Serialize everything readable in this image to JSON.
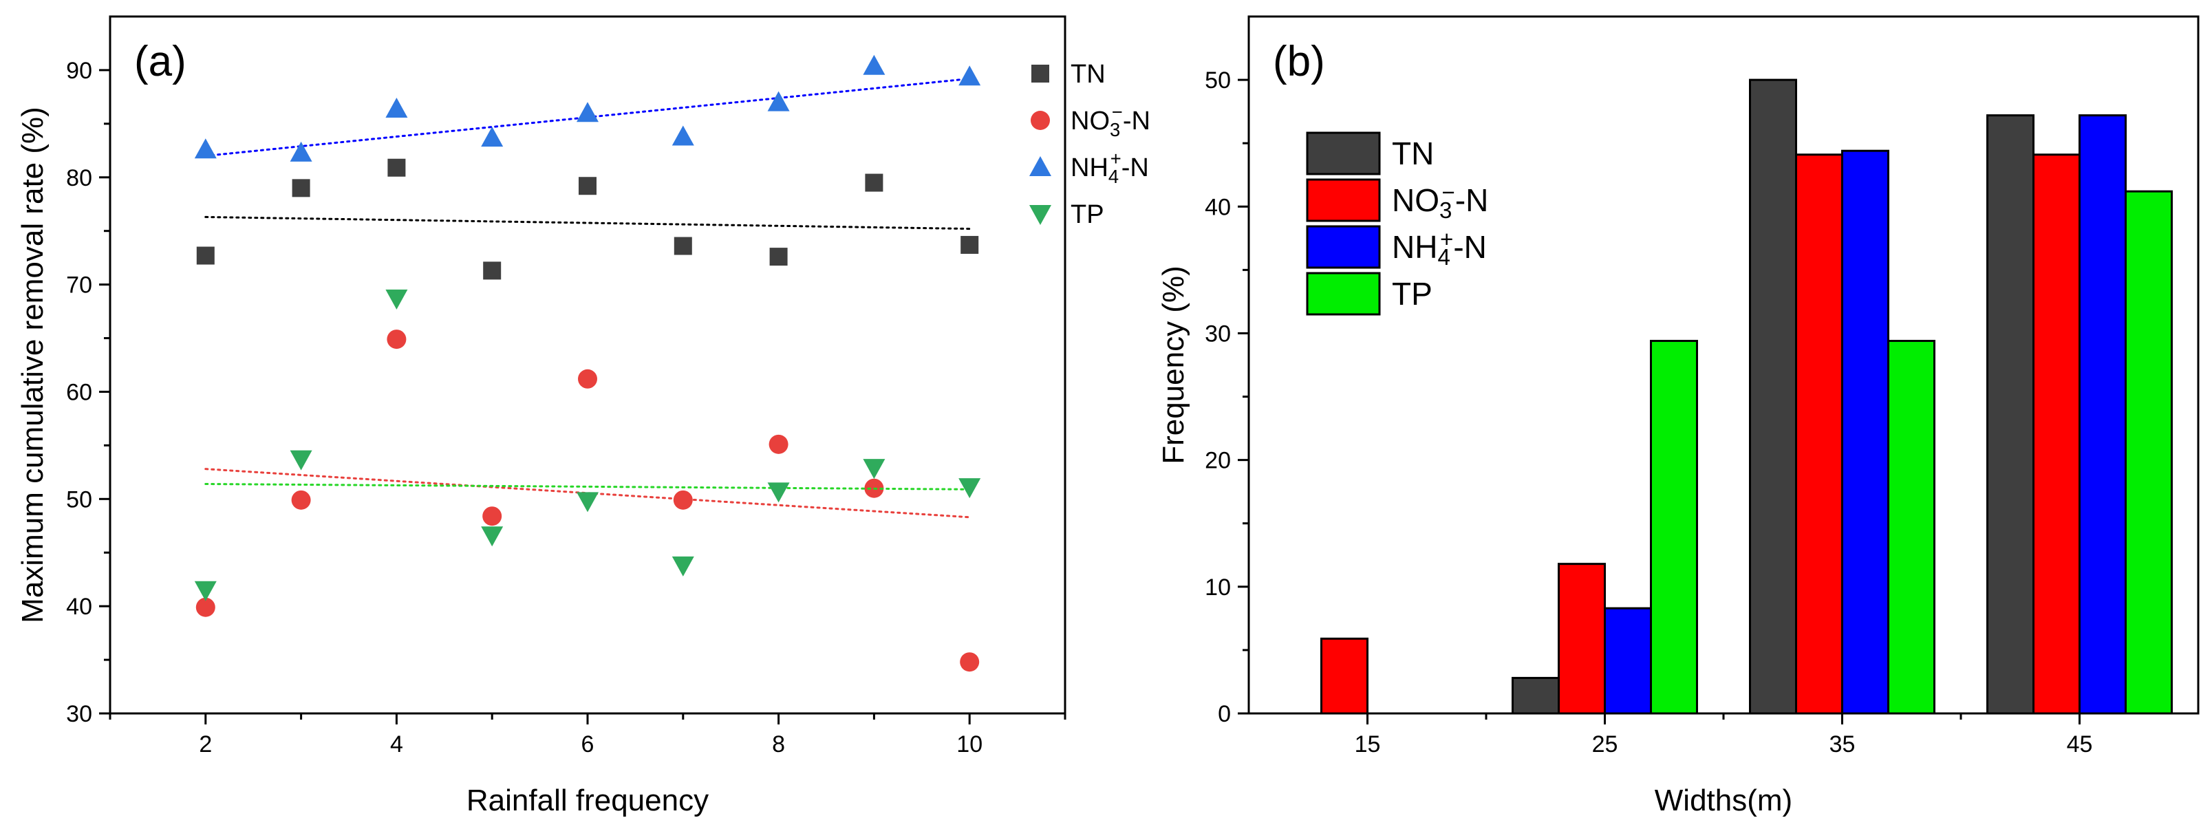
{
  "chart_data": [
    {
      "type": "scatter",
      "panel_label": "(a)",
      "xlabel": "Rainfall frequency",
      "ylabel": "Maximum cumulative removal rate (%)",
      "xlim": [
        1,
        11
      ],
      "ylim": [
        30,
        95
      ],
      "xticks": [
        2,
        4,
        6,
        8,
        10
      ],
      "yticks": [
        30,
        40,
        50,
        60,
        70,
        80,
        90
      ],
      "legend_position": "top-right",
      "x": [
        2,
        3,
        4,
        5,
        6,
        7,
        8,
        9,
        10
      ],
      "series": [
        {
          "name": "TN",
          "label_main": "TN",
          "marker": "square",
          "color": "#3f3f3f",
          "values": [
            72.7,
            79.0,
            80.9,
            71.3,
            79.2,
            73.6,
            72.6,
            79.5,
            73.7
          ],
          "trend": {
            "start": [
              2,
              76.3
            ],
            "end": [
              10,
              75.2
            ],
            "color": "#000000"
          }
        },
        {
          "name": "NO3−-N",
          "label_main": "NO",
          "label_sub": "3",
          "label_sup": "−",
          "label_tail": "-N",
          "marker": "circle",
          "color": "#e8403c",
          "values": [
            39.9,
            49.9,
            64.9,
            48.4,
            61.2,
            49.9,
            55.1,
            51.0,
            34.8
          ],
          "trend": {
            "start": [
              2,
              52.8
            ],
            "end": [
              10,
              48.3
            ],
            "color": "#e8403c"
          }
        },
        {
          "name": "NH4+-N",
          "label_main": "NH",
          "label_sub": "4",
          "label_sup": "+",
          "label_tail": "-N",
          "marker": "triangle-up",
          "color": "#2f78e0",
          "values": [
            82.6,
            82.3,
            86.4,
            83.7,
            86.0,
            83.8,
            87.0,
            90.4,
            89.4
          ],
          "trend": {
            "start": [
              2,
              82.0
            ],
            "end": [
              10,
              89.2
            ],
            "color": "#0000ff"
          }
        },
        {
          "name": "TP",
          "label_main": "TP",
          "marker": "triangle-down",
          "color": "#2fab5c",
          "values": [
            41.5,
            53.7,
            68.7,
            46.6,
            49.8,
            43.8,
            50.7,
            52.9,
            51.1
          ],
          "trend": {
            "start": [
              2,
              51.4
            ],
            "end": [
              10,
              50.9
            ],
            "color": "#27d627"
          }
        }
      ]
    },
    {
      "type": "bar",
      "panel_label": "(b)",
      "xlabel": "Widths(m)",
      "ylabel": "Frequency (%)",
      "ylim": [
        0,
        55
      ],
      "yticks": [
        0,
        10,
        20,
        30,
        40,
        50
      ],
      "categories": [
        "15",
        "25",
        "35",
        "45"
      ],
      "legend_position": "top-left",
      "series": [
        {
          "name": "TN",
          "label_main": "TN",
          "color": "#3f3f3f",
          "values": [
            0,
            2.8,
            50.0,
            47.2
          ]
        },
        {
          "name": "NO3−-N",
          "label_main": "NO",
          "label_sub": "3",
          "label_sup": "−",
          "label_tail": "-N",
          "color": "#ff0000",
          "values": [
            5.9,
            11.8,
            44.1,
            44.1
          ]
        },
        {
          "name": "NH4+-N",
          "label_main": "NH",
          "label_sub": "4",
          "label_sup": "+",
          "label_tail": "-N",
          "color": "#0000ff",
          "values": [
            0,
            8.3,
            44.4,
            47.2
          ]
        },
        {
          "name": "TP",
          "label_main": "TP",
          "color": "#00ee00",
          "values": [
            0,
            29.4,
            29.4,
            41.2
          ]
        }
      ]
    }
  ]
}
